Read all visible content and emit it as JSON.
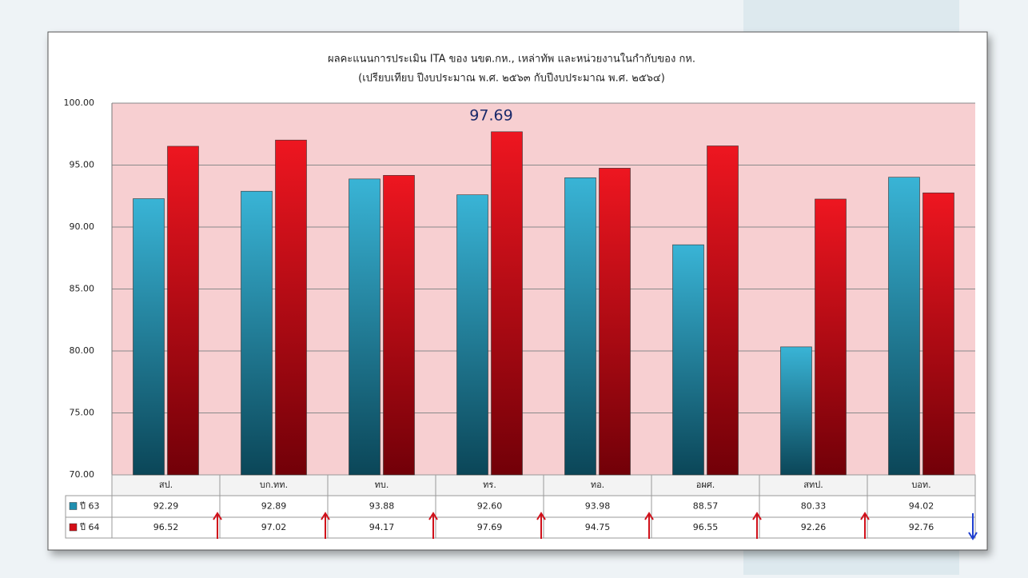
{
  "chart_data": {
    "type": "bar",
    "title": [
      "ผลคะแนนการประเมิน ITA ของ นขต.กห., เหล่าทัพ และหน่วยงานในกำกับของ กห.",
      "(เปรียบเทียบ ปีงบประมาณ พ.ศ. ๒๕๖๓ กับปีงบประมาณ พ.ศ. ๒๕๖๔)"
    ],
    "categories": [
      "สป.",
      "บก.ทท.",
      "ทบ.",
      "ทร.",
      "ทอ.",
      "อผศ.",
      "สทป.",
      "บอท."
    ],
    "series": [
      {
        "name": "ปี 63",
        "color": "#1f8fb0",
        "values": [
          92.29,
          92.89,
          93.88,
          92.6,
          93.98,
          88.57,
          80.33,
          94.02
        ],
        "value_labels": [
          "92.29",
          "92.89",
          "93.88",
          "92.60",
          "93.98",
          "88.57",
          "80.33",
          "94.02"
        ]
      },
      {
        "name": "ปี 64",
        "color": "#d40f17",
        "values": [
          96.52,
          97.02,
          94.17,
          97.69,
          94.75,
          96.55,
          92.26,
          92.76
        ],
        "value_labels": [
          "96.52",
          "97.02",
          "94.17",
          "97.69",
          "94.75",
          "96.55",
          "92.26",
          "92.76"
        ]
      }
    ],
    "ylim": [
      70,
      100
    ],
    "yticks": [
      {
        "value": 70,
        "label": "70.00"
      },
      {
        "value": 75,
        "label": "75.00"
      },
      {
        "value": 80,
        "label": "80.00"
      },
      {
        "value": 85,
        "label": "85.00"
      },
      {
        "value": 90,
        "label": "90.00"
      },
      {
        "value": 95,
        "label": "95.00"
      },
      {
        "value": 100,
        "label": "100.00"
      }
    ],
    "grid": true,
    "highlight_label": {
      "series": 1,
      "index": 3
    }
  }
}
